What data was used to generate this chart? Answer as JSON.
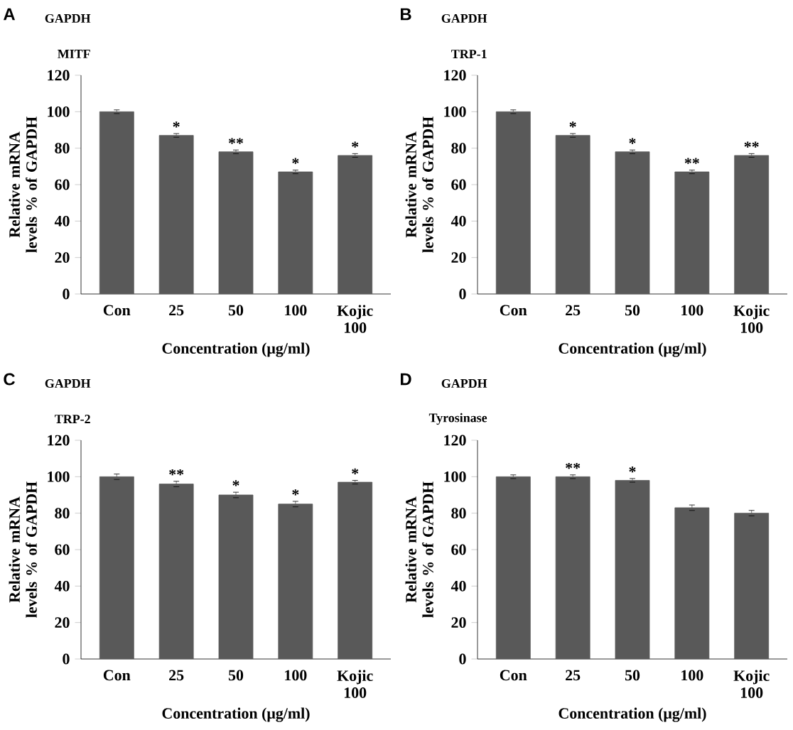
{
  "chart_data": [
    {
      "type": "bar",
      "title": "A",
      "xlabel": "Concentration (μg/ml)",
      "ylabel": "Relative mRNA levels % of GAPDH",
      "categories": [
        "Con",
        "25",
        "50",
        "100",
        "Kojic 100"
      ],
      "values": [
        100,
        87,
        78,
        67,
        76
      ],
      "errors": [
        1,
        1,
        1,
        1,
        1
      ],
      "color": "#595959",
      "ylim": [
        0,
        120
      ],
      "yticks": [
        0,
        20,
        40,
        60,
        80,
        100,
        120
      ],
      "annotations": [
        "GAPDH",
        "MITF",
        {
          "text": "*",
          "x": "25",
          "y": 87
        },
        {
          "text": "**",
          "x": "50",
          "y": 78
        },
        {
          "text": "*",
          "x": "100",
          "y": 67
        },
        {
          "text": "*",
          "x": "Kojic 100",
          "y": 76
        }
      ]
    },
    {
      "type": "bar",
      "title": "B",
      "xlabel": "Concentration (μg/ml)",
      "ylabel": "Relative mRNA levels % of GAPDH",
      "categories": [
        "Con",
        "25",
        "50",
        "100",
        "Kojic 100"
      ],
      "values": [
        100,
        87,
        78,
        67,
        76
      ],
      "errors": [
        1,
        1,
        1,
        1,
        1
      ],
      "color": "#595959",
      "ylim": [
        0,
        120
      ],
      "yticks": [
        0,
        20,
        40,
        60,
        80,
        100,
        120
      ],
      "annotations": [
        "GAPDH",
        "TRP-1",
        {
          "text": "*",
          "x": "25",
          "y": 87
        },
        {
          "text": "*",
          "x": "50",
          "y": 78
        },
        {
          "text": "**",
          "x": "100",
          "y": 67
        },
        {
          "text": "**",
          "x": "Kojic 100",
          "y": 76
        }
      ]
    },
    {
      "type": "bar",
      "title": "C",
      "xlabel": "Concentration (μg/ml)",
      "ylabel": "Relative mRNA levels % of GAPDH",
      "categories": [
        "Con",
        "25",
        "50",
        "100",
        "Kojic 100"
      ],
      "values": [
        100,
        96,
        90,
        85,
        97
      ],
      "errors": [
        1.5,
        1.5,
        1.5,
        1.5,
        1
      ],
      "color": "#595959",
      "ylim": [
        0,
        120
      ],
      "yticks": [
        0,
        20,
        40,
        60,
        80,
        100,
        120
      ],
      "annotations": [
        "GAPDH",
        "TRP-2",
        {
          "text": "**",
          "x": "25",
          "y": 96
        },
        {
          "text": "*",
          "x": "50",
          "y": 90
        },
        {
          "text": "*",
          "x": "100",
          "y": 85
        },
        {
          "text": "*",
          "x": "Kojic 100",
          "y": 97
        }
      ]
    },
    {
      "type": "bar",
      "title": "D",
      "xlabel": "Concentration (μg/ml)",
      "ylabel": "Relative mRNA levels % of GAPDH",
      "categories": [
        "Con",
        "25",
        "50",
        "100",
        "Kojic 100"
      ],
      "values": [
        100,
        100,
        98,
        83,
        80
      ],
      "errors": [
        1,
        1,
        1,
        1.5,
        1.5
      ],
      "color": "#595959",
      "ylim": [
        0,
        120
      ],
      "yticks": [
        0,
        20,
        40,
        60,
        80,
        100,
        120
      ],
      "annotations": [
        "GAPDH",
        "Tyrosinase",
        {
          "text": "**",
          "x": "25",
          "y": 100
        },
        {
          "text": "*",
          "x": "50",
          "y": 98
        }
      ]
    }
  ]
}
